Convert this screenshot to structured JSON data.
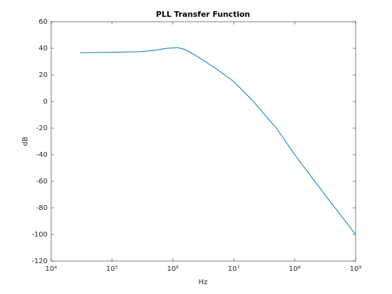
{
  "chart_data": {
    "type": "line",
    "title": "PLL Transfer Function",
    "x_label": "Hz",
    "y_label": "dB",
    "xscale": "log",
    "x": [
      30000,
      100000,
      300000,
      500000,
      800000,
      1200000,
      1600000,
      2500000,
      5000000,
      10000000,
      20000000,
      50000000,
      100000000,
      300000000,
      1000000000
    ],
    "series": [
      {
        "color": "#0072bd",
        "values": [
          36.7,
          37,
          37.5,
          38.5,
          40,
          40.5,
          39,
          34,
          25,
          15,
          1,
          -20,
          -40,
          -69,
          -100
        ]
      }
    ],
    "xlim": [
      10000,
      1000000000
    ],
    "xticks": [
      {
        "value": 10000,
        "label": "10⁴"
      },
      {
        "value": 100000,
        "label": "10⁵"
      },
      {
        "value": 1000000,
        "label": "10⁶"
      },
      {
        "value": 10000000,
        "label": "10⁷"
      },
      {
        "value": 100000000,
        "label": "10⁸"
      },
      {
        "value": 1000000000,
        "label": "10⁹"
      }
    ],
    "ylim": [
      -120,
      60
    ],
    "yticks": [
      -120,
      -100,
      -80,
      -60,
      -40,
      -20,
      0,
      20,
      40,
      60
    ]
  }
}
